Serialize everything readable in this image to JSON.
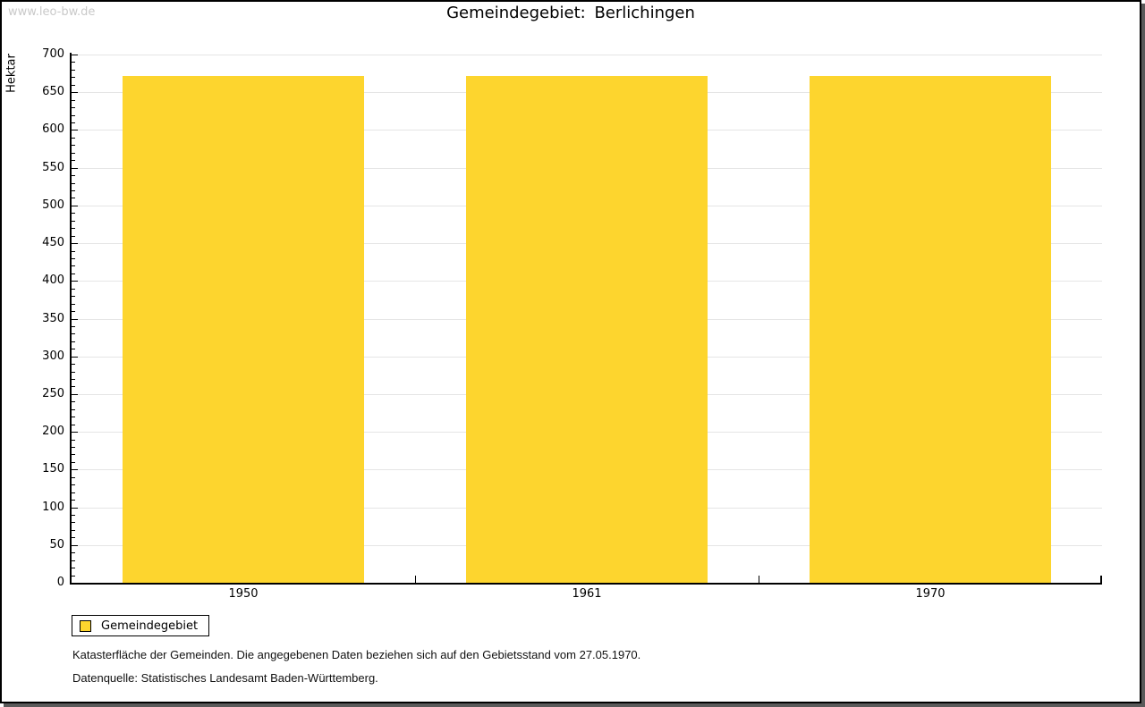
{
  "watermark": "www.leo-bw.de",
  "title": "Gemeindegebiet: Berlichingen",
  "colors": {
    "bar": "#FDD52E",
    "grid": "#E5E5E5",
    "axis": "#000000",
    "watermark_text": "#C9C9C9",
    "frame_shadow": "#5A5A5A"
  },
  "chart_data": {
    "type": "bar",
    "title": "Gemeindegebiet: Berlichingen",
    "categories": [
      "1950",
      "1961",
      "1970"
    ],
    "series": [
      {
        "name": "Gemeindegebiet",
        "values": [
          672,
          672,
          672
        ]
      }
    ],
    "xlabel": "",
    "ylabel": "Hektar",
    "ylim": [
      0,
      700
    ],
    "y_major_step": 50,
    "y_minor_step": 10,
    "grid": "horizontal-major-only",
    "legend_position": "bottom-left",
    "bar_color": "#FDD52E"
  },
  "legend": {
    "items": [
      {
        "label": "Gemeindegebiet",
        "color": "#FDD52E"
      }
    ]
  },
  "footnotes": [
    "Katasterfläche der Gemeinden. Die angegebenen Daten beziehen sich auf den Gebietsstand vom 27.05.1970.",
    "Datenquelle: Statistisches Landesamt Baden-Württemberg."
  ]
}
